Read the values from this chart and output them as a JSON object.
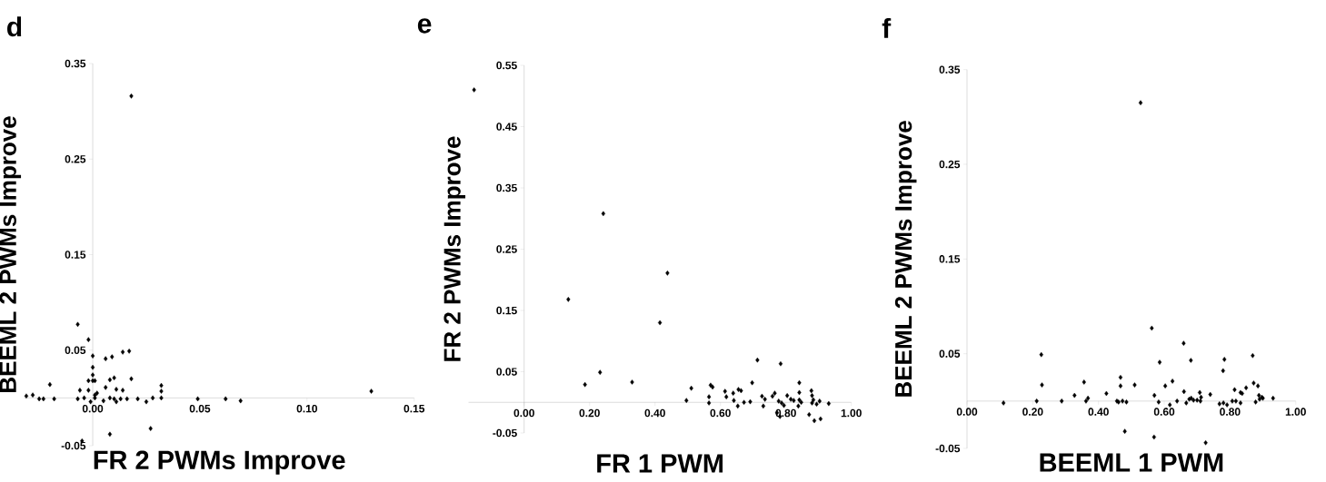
{
  "chart_data": [
    {
      "type": "scatter",
      "xlabel": "FR 2 PWMs Improve",
      "ylabel": "BEEML 2 PWMs Improve",
      "annotations": [
        "d"
      ],
      "color": "#000000",
      "marker": "diamond",
      "xlim": [
        -0.032,
        0.15
      ],
      "ylim": [
        -0.05,
        0.35
      ],
      "xticks": [
        {
          "value": 0,
          "label": "0.00"
        },
        0.05,
        {
          "value": 0.1,
          "label": "0.10"
        },
        0.15
      ],
      "yticks": [
        -0.05,
        0.05,
        0.15,
        0.25,
        0.35
      ],
      "x": [
        0.018,
        -0.007,
        -0.002,
        0.0,
        0.006,
        0.009,
        0.014,
        0.017,
        0.0,
        0.0,
        -0.002,
        0.0,
        0.001,
        0.008,
        0.01,
        0.018,
        -0.02,
        -0.006,
        -0.002,
        0.006,
        0.011,
        0.014,
        0.032,
        0.032,
        0.032,
        -0.028,
        -0.031,
        -0.025,
        -0.023,
        -0.018,
        -0.007,
        -0.004,
        -0.001,
        0.001,
        0.002,
        0.001,
        0.005,
        0.008,
        0.01,
        0.011,
        0.013,
        0.016,
        0.021,
        0.025,
        0.028,
        0.049,
        0.062,
        0.069,
        0.13,
        0.027,
        0.008,
        -0.005
      ],
      "values": [
        0.316,
        0.077,
        0.061,
        0.044,
        0.041,
        0.043,
        0.048,
        0.049,
        0.032,
        0.024,
        0.018,
        0.018,
        0.018,
        0.019,
        0.021,
        0.02,
        0.014,
        0.008,
        0.008,
        0.011,
        0.009,
        0.008,
        0.013,
        0.007,
        0.0,
        0.003,
        0.002,
        -0.001,
        -0.001,
        -0.001,
        -0.001,
        0.0,
        -0.004,
        0.003,
        0.005,
        0.0,
        -0.003,
        0.0,
        -0.001,
        -0.004,
        -0.001,
        -0.001,
        -0.001,
        -0.004,
        0.0,
        -0.001,
        -0.001,
        -0.003,
        0.007,
        -0.032,
        -0.038,
        -0.045
      ]
    },
    {
      "type": "scatter",
      "xlabel": "FR 1 PWM",
      "ylabel": "FR 2 PWMs Improve",
      "annotations": [
        "e"
      ],
      "color": "#000000",
      "marker": "diamond",
      "xlim": [
        -0.17,
        1.0
      ],
      "ylim": [
        -0.05,
        0.55
      ],
      "xticks": [
        {
          "value": 0,
          "label": "0.00"
        },
        {
          "value": 0.2,
          "label": "0.20"
        },
        {
          "value": 0.4,
          "label": "0.40"
        },
        {
          "value": 0.6,
          "label": "0.60"
        },
        {
          "value": 0.8,
          "label": "0.80"
        },
        {
          "value": 1,
          "label": "1.00"
        }
      ],
      "yticks": [
        -0.05,
        0.05,
        0.15,
        0.25,
        0.35,
        0.45,
        0.55
      ],
      "x": [
        -0.153,
        0.242,
        0.438,
        0.135,
        0.415,
        0.232,
        0.186,
        0.33,
        0.713,
        0.784,
        0.496,
        0.511,
        0.565,
        0.565,
        0.57,
        0.576,
        0.614,
        0.618,
        0.639,
        0.641,
        0.655,
        0.663,
        0.653,
        0.672,
        0.691,
        0.697,
        0.727,
        0.731,
        0.736,
        0.759,
        0.766,
        0.778,
        0.787,
        0.794,
        0.773,
        0.782,
        0.804,
        0.815,
        0.824,
        0.841,
        0.841,
        0.841,
        0.838,
        0.847,
        0.878,
        0.88,
        0.884,
        0.88,
        0.894,
        0.903,
        0.871,
        0.887,
        0.906,
        0.931
      ],
      "values": [
        0.51,
        0.308,
        0.211,
        0.168,
        0.13,
        0.049,
        0.029,
        0.033,
        0.069,
        0.063,
        0.003,
        0.023,
        0.009,
        -0.001,
        0.028,
        0.025,
        0.018,
        0.009,
        0.015,
        0.003,
        0.021,
        0.019,
        -0.006,
        0.0,
        0.001,
        0.032,
        0.01,
        -0.006,
        0.005,
        0.01,
        0.015,
        0.002,
        -0.001,
        -0.005,
        -0.017,
        -0.023,
        0.011,
        0.005,
        0.003,
        0.032,
        0.016,
        0.004,
        -0.006,
        0.0,
        0.019,
        0.011,
        0.004,
        -0.001,
        -0.003,
        0.002,
        -0.02,
        -0.03,
        -0.027,
        -0.002
      ]
    },
    {
      "type": "scatter",
      "xlabel": "BEEML 1 PWM",
      "ylabel": "BEEML 2 PWMs Improve",
      "annotations": [
        "f"
      ],
      "color": "#000000",
      "marker": "diamond",
      "xlim": [
        0,
        1.0
      ],
      "ylim": [
        -0.05,
        0.35
      ],
      "xticks": [
        {
          "value": 0,
          "label": "0.00"
        },
        {
          "value": 0.2,
          "label": "0.20"
        },
        {
          "value": 0.4,
          "label": "0.40"
        },
        {
          "value": 0.6,
          "label": "0.60"
        },
        {
          "value": 0.8,
          "label": "0.80"
        },
        {
          "value": 1,
          "label": "1.00"
        }
      ],
      "yticks": [
        -0.05,
        0.05,
        0.15,
        0.25,
        0.35
      ],
      "x": [
        0.528,
        0.562,
        0.659,
        0.226,
        0.869,
        0.586,
        0.681,
        0.783,
        0.779,
        0.228,
        0.356,
        0.467,
        0.467,
        0.51,
        0.625,
        0.603,
        0.872,
        0.885,
        0.849,
        0.814,
        0.832,
        0.837,
        0.66,
        0.708,
        0.74,
        0.57,
        0.424,
        0.327,
        0.368,
        0.362,
        0.111,
        0.212,
        0.288,
        0.456,
        0.461,
        0.473,
        0.485,
        0.583,
        0.617,
        0.639,
        0.667,
        0.676,
        0.682,
        0.689,
        0.7,
        0.71,
        0.712,
        0.768,
        0.78,
        0.791,
        0.807,
        0.818,
        0.832,
        0.878,
        0.89,
        0.897,
        0.888,
        0.9,
        0.931,
        0.48,
        0.569,
        0.726
      ],
      "values": [
        0.315,
        0.077,
        0.061,
        0.049,
        0.048,
        0.041,
        0.043,
        0.044,
        0.032,
        0.017,
        0.02,
        0.025,
        0.016,
        0.017,
        0.021,
        0.016,
        0.019,
        0.016,
        0.014,
        0.012,
        0.009,
        0.008,
        0.01,
        0.009,
        0.007,
        0.006,
        0.008,
        0.006,
        0.003,
        0.0,
        -0.002,
        0.0,
        0.0,
        0.0,
        -0.001,
        0.0,
        -0.001,
        -0.001,
        -0.004,
        0.0,
        -0.002,
        0.002,
        0.003,
        0.001,
        0.001,
        0.0,
        0.004,
        -0.003,
        -0.002,
        -0.004,
        0.0,
        0.0,
        -0.002,
        -0.001,
        0.002,
        0.004,
        0.006,
        0.003,
        0.003,
        -0.032,
        -0.038,
        -0.044
      ]
    }
  ]
}
